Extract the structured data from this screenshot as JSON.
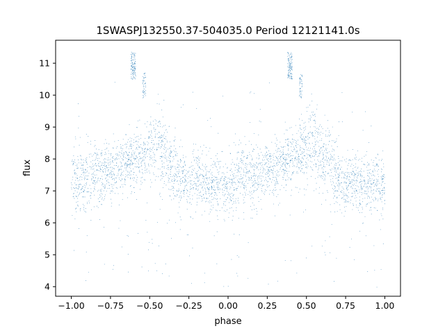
{
  "chart_data": {
    "type": "scatter",
    "title": "1SWASPJ132550.37-504035.0 Period 12121141.0s",
    "xlabel": "phase",
    "ylabel": "flux",
    "xlim": [
      -1.1,
      1.1
    ],
    "ylim": [
      3.7,
      11.72
    ],
    "xticks": [
      -1.0,
      -0.75,
      -0.5,
      -0.25,
      0.0,
      0.25,
      0.5,
      0.75,
      1.0
    ],
    "xtick_labels": [
      "−1.00",
      "−0.75",
      "−0.50",
      "−0.25",
      "0.00",
      "0.25",
      "0.50",
      "0.75",
      "1.00"
    ],
    "yticks": [
      4,
      5,
      6,
      7,
      8,
      9,
      10,
      11
    ],
    "ytick_labels": [
      "4",
      "5",
      "6",
      "7",
      "8",
      "9",
      "10",
      "11"
    ],
    "grid": false,
    "point_color": "#1f77b4",
    "series": [
      {
        "profile_phase": [
          -1.0,
          -0.95,
          -0.9,
          -0.85,
          -0.8,
          -0.75,
          -0.7,
          -0.65,
          -0.6,
          -0.55,
          -0.5,
          -0.45,
          -0.4,
          -0.35,
          -0.3,
          -0.25,
          -0.2,
          -0.15,
          -0.1,
          -0.05,
          0.0,
          0.05,
          0.1,
          0.15,
          0.2,
          0.25,
          0.3,
          0.35,
          0.4,
          0.45,
          0.5,
          0.55,
          0.6,
          0.65,
          0.7,
          0.75,
          0.8,
          0.85,
          0.9,
          0.95,
          1.0
        ],
        "profile_flux": [
          7.6,
          7.2,
          7.5,
          7.6,
          7.5,
          7.7,
          7.7,
          7.9,
          8.0,
          8.1,
          8.4,
          8.5,
          8.1,
          7.7,
          7.4,
          7.2,
          7.4,
          7.2,
          7.2,
          7.3,
          7.1,
          7.4,
          7.6,
          7.5,
          7.6,
          7.7,
          7.7,
          7.9,
          8.0,
          8.1,
          8.4,
          8.5,
          8.1,
          7.7,
          7.4,
          7.2,
          7.4,
          7.2,
          7.2,
          7.3,
          7.1
        ]
      }
    ],
    "annotations": []
  }
}
